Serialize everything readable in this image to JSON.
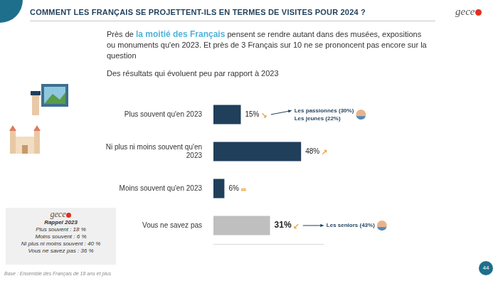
{
  "chart_data": {
    "type": "bar",
    "orientation": "horizontal",
    "title": "COMMENT LES FRANÇAIS SE PROJETTENT-ILS EN TERMES DE VISITES POUR 2024 ?",
    "subtitle": {
      "before": "Près de ",
      "highlight": "la moitié des Français",
      "after": " pensent se rendre autant dans des musées, expositions ou monuments qu'en 2023. Et près de 3 Français sur 10 ne se prononcent pas encore sur la question"
    },
    "note": "Des résultats qui évoluent peu par rapport à 2023",
    "categories": [
      "Plus souvent qu'en 2023",
      "Ni plus ni moins souvent qu'en 2023",
      "Moins souvent qu'en 2023",
      "Vous ne savez pas"
    ],
    "values": [
      15,
      48,
      6,
      31
    ],
    "value_labels": [
      "15%",
      "48%",
      "6%",
      "31%"
    ],
    "colors": [
      "#1f3f5b",
      "#1f3f5b",
      "#1f3f5b",
      "#bfbfbf"
    ],
    "trend_marks": [
      "↘",
      "↗",
      "=",
      "↙"
    ],
    "xlim": [
      0,
      60
    ],
    "grid": false,
    "tick_labels": "y",
    "data_labels": true,
    "annotations": [
      {
        "category": "Plus souvent qu'en 2023",
        "lines": [
          "Les passionnés (30%)",
          "Les jeunes (22%)"
        ]
      },
      {
        "category": "Vous ne savez pas",
        "lines": [
          "Les seniors (43%)"
        ]
      }
    ],
    "recall": {
      "logo": "gece",
      "title": "Rappel 2023",
      "lines": [
        "Plus souvent : 18 %",
        "Moins souvent : 6 %",
        "Ni plus ni moins souvent : 40 %",
        "Vous ne savez pas : 36 %"
      ]
    },
    "logo": "gece",
    "base": "Base : Ensemble des Français de 18 ans et plus",
    "page_number": "44"
  }
}
